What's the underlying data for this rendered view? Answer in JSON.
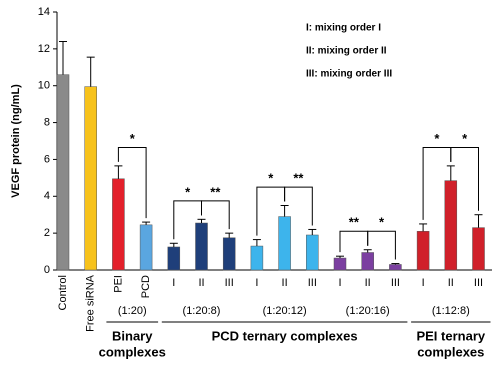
{
  "chart_data": {
    "type": "bar",
    "y_label": "VEGF protein (ng/mL)",
    "ylim": [
      0,
      14
    ],
    "yticks": [
      0,
      2,
      4,
      6,
      8,
      10,
      12,
      14
    ],
    "legend": [
      "I:  mixing order I",
      "II: mixing order II",
      "III: mixing order III"
    ],
    "groups": [
      {
        "subgroups": [
          {
            "categories": [
              "Control"
            ],
            "values": [
              10.6
            ],
            "errors": [
              1.8
            ],
            "colors": [
              "#8a8a8a"
            ],
            "significance": []
          }
        ]
      },
      {
        "subgroups": [
          {
            "categories": [
              "Free siRNA"
            ],
            "values": [
              9.95
            ],
            "errors": [
              1.6
            ],
            "colors": [
              "#f7c21b"
            ],
            "significance": []
          }
        ]
      },
      {
        "name": [
          "Binary",
          "complexes"
        ],
        "subgroups": [
          {
            "ratio": "(1:20)",
            "categories": [
              "PEI",
              "PCD"
            ],
            "values": [
              4.95,
              2.45
            ],
            "errors": [
              0.7,
              0.15
            ],
            "colors": [
              "#e3202b",
              "#5aa6e0"
            ],
            "significance": [
              "*"
            ]
          }
        ]
      },
      {
        "name": [
          "PCD ternary complexes"
        ],
        "subgroups": [
          {
            "ratio": "(1:20:8)",
            "categories": [
              "I",
              "II",
              "III"
            ],
            "values": [
              1.25,
              2.55,
              1.75
            ],
            "errors": [
              0.2,
              0.2,
              0.25
            ],
            "colors": [
              "#1f3f7a",
              "#1f3f7a",
              "#1f3f7a"
            ],
            "significance": [
              "*",
              "**"
            ]
          },
          {
            "ratio": "(1:20:12)",
            "categories": [
              "I",
              "II",
              "III"
            ],
            "values": [
              1.3,
              2.9,
              1.9
            ],
            "errors": [
              0.35,
              0.6,
              0.3
            ],
            "colors": [
              "#3db4ec",
              "#3db4ec",
              "#3db4ec"
            ],
            "significance": [
              "*",
              "**"
            ]
          },
          {
            "ratio": "(1:20:16)",
            "categories": [
              "I",
              "II",
              "III"
            ],
            "values": [
              0.65,
              0.95,
              0.3
            ],
            "errors": [
              0.1,
              0.15,
              0.05
            ],
            "colors": [
              "#7b3fa0",
              "#7b3fa0",
              "#7b3fa0"
            ],
            "significance": [
              "**",
              "*"
            ]
          }
        ]
      },
      {
        "name": [
          "PEI ternary",
          "complexes"
        ],
        "subgroups": [
          {
            "ratio": "(1:12:8)",
            "categories": [
              "I",
              "II",
              "III"
            ],
            "values": [
              2.1,
              4.85,
              2.3
            ],
            "errors": [
              0.4,
              0.8,
              0.7
            ],
            "colors": [
              "#d0202a",
              "#d0202a",
              "#d0202a"
            ],
            "significance": [
              "*",
              "*"
            ]
          }
        ]
      }
    ]
  }
}
